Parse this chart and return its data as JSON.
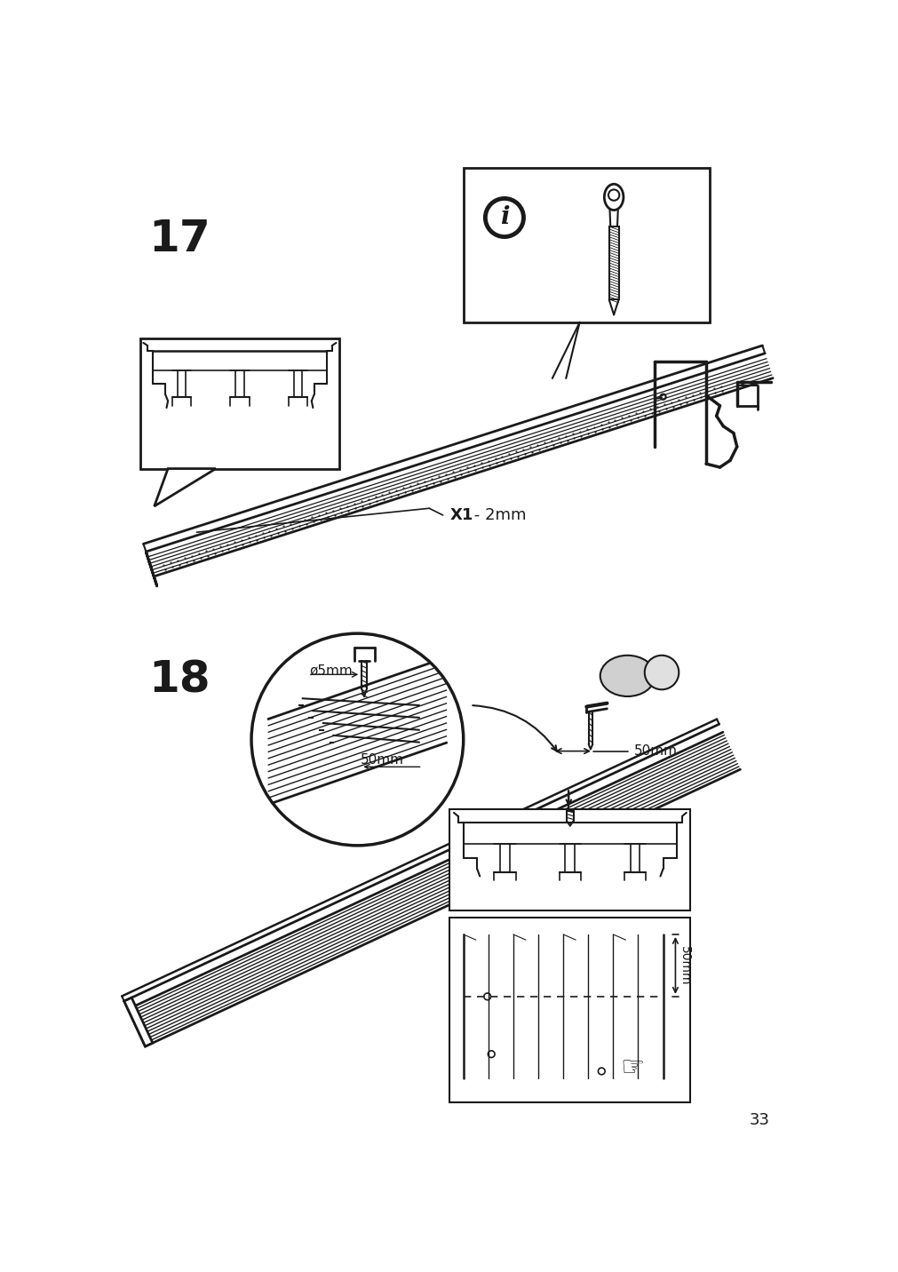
{
  "bg_color": "#ffffff",
  "line_color": "#1a1a1a",
  "step17_label": "17",
  "step18_label": "18",
  "label_x1_2mm": " - 2mm",
  "label_x1": "X1",
  "label_diameter": "ø5mm",
  "label_50mm_circle": "50mm",
  "label_50mm_right": "50mm",
  "label_50mm_box": "50mm",
  "page_number": "33",
  "font_size_step": 36,
  "font_size_label": 12
}
